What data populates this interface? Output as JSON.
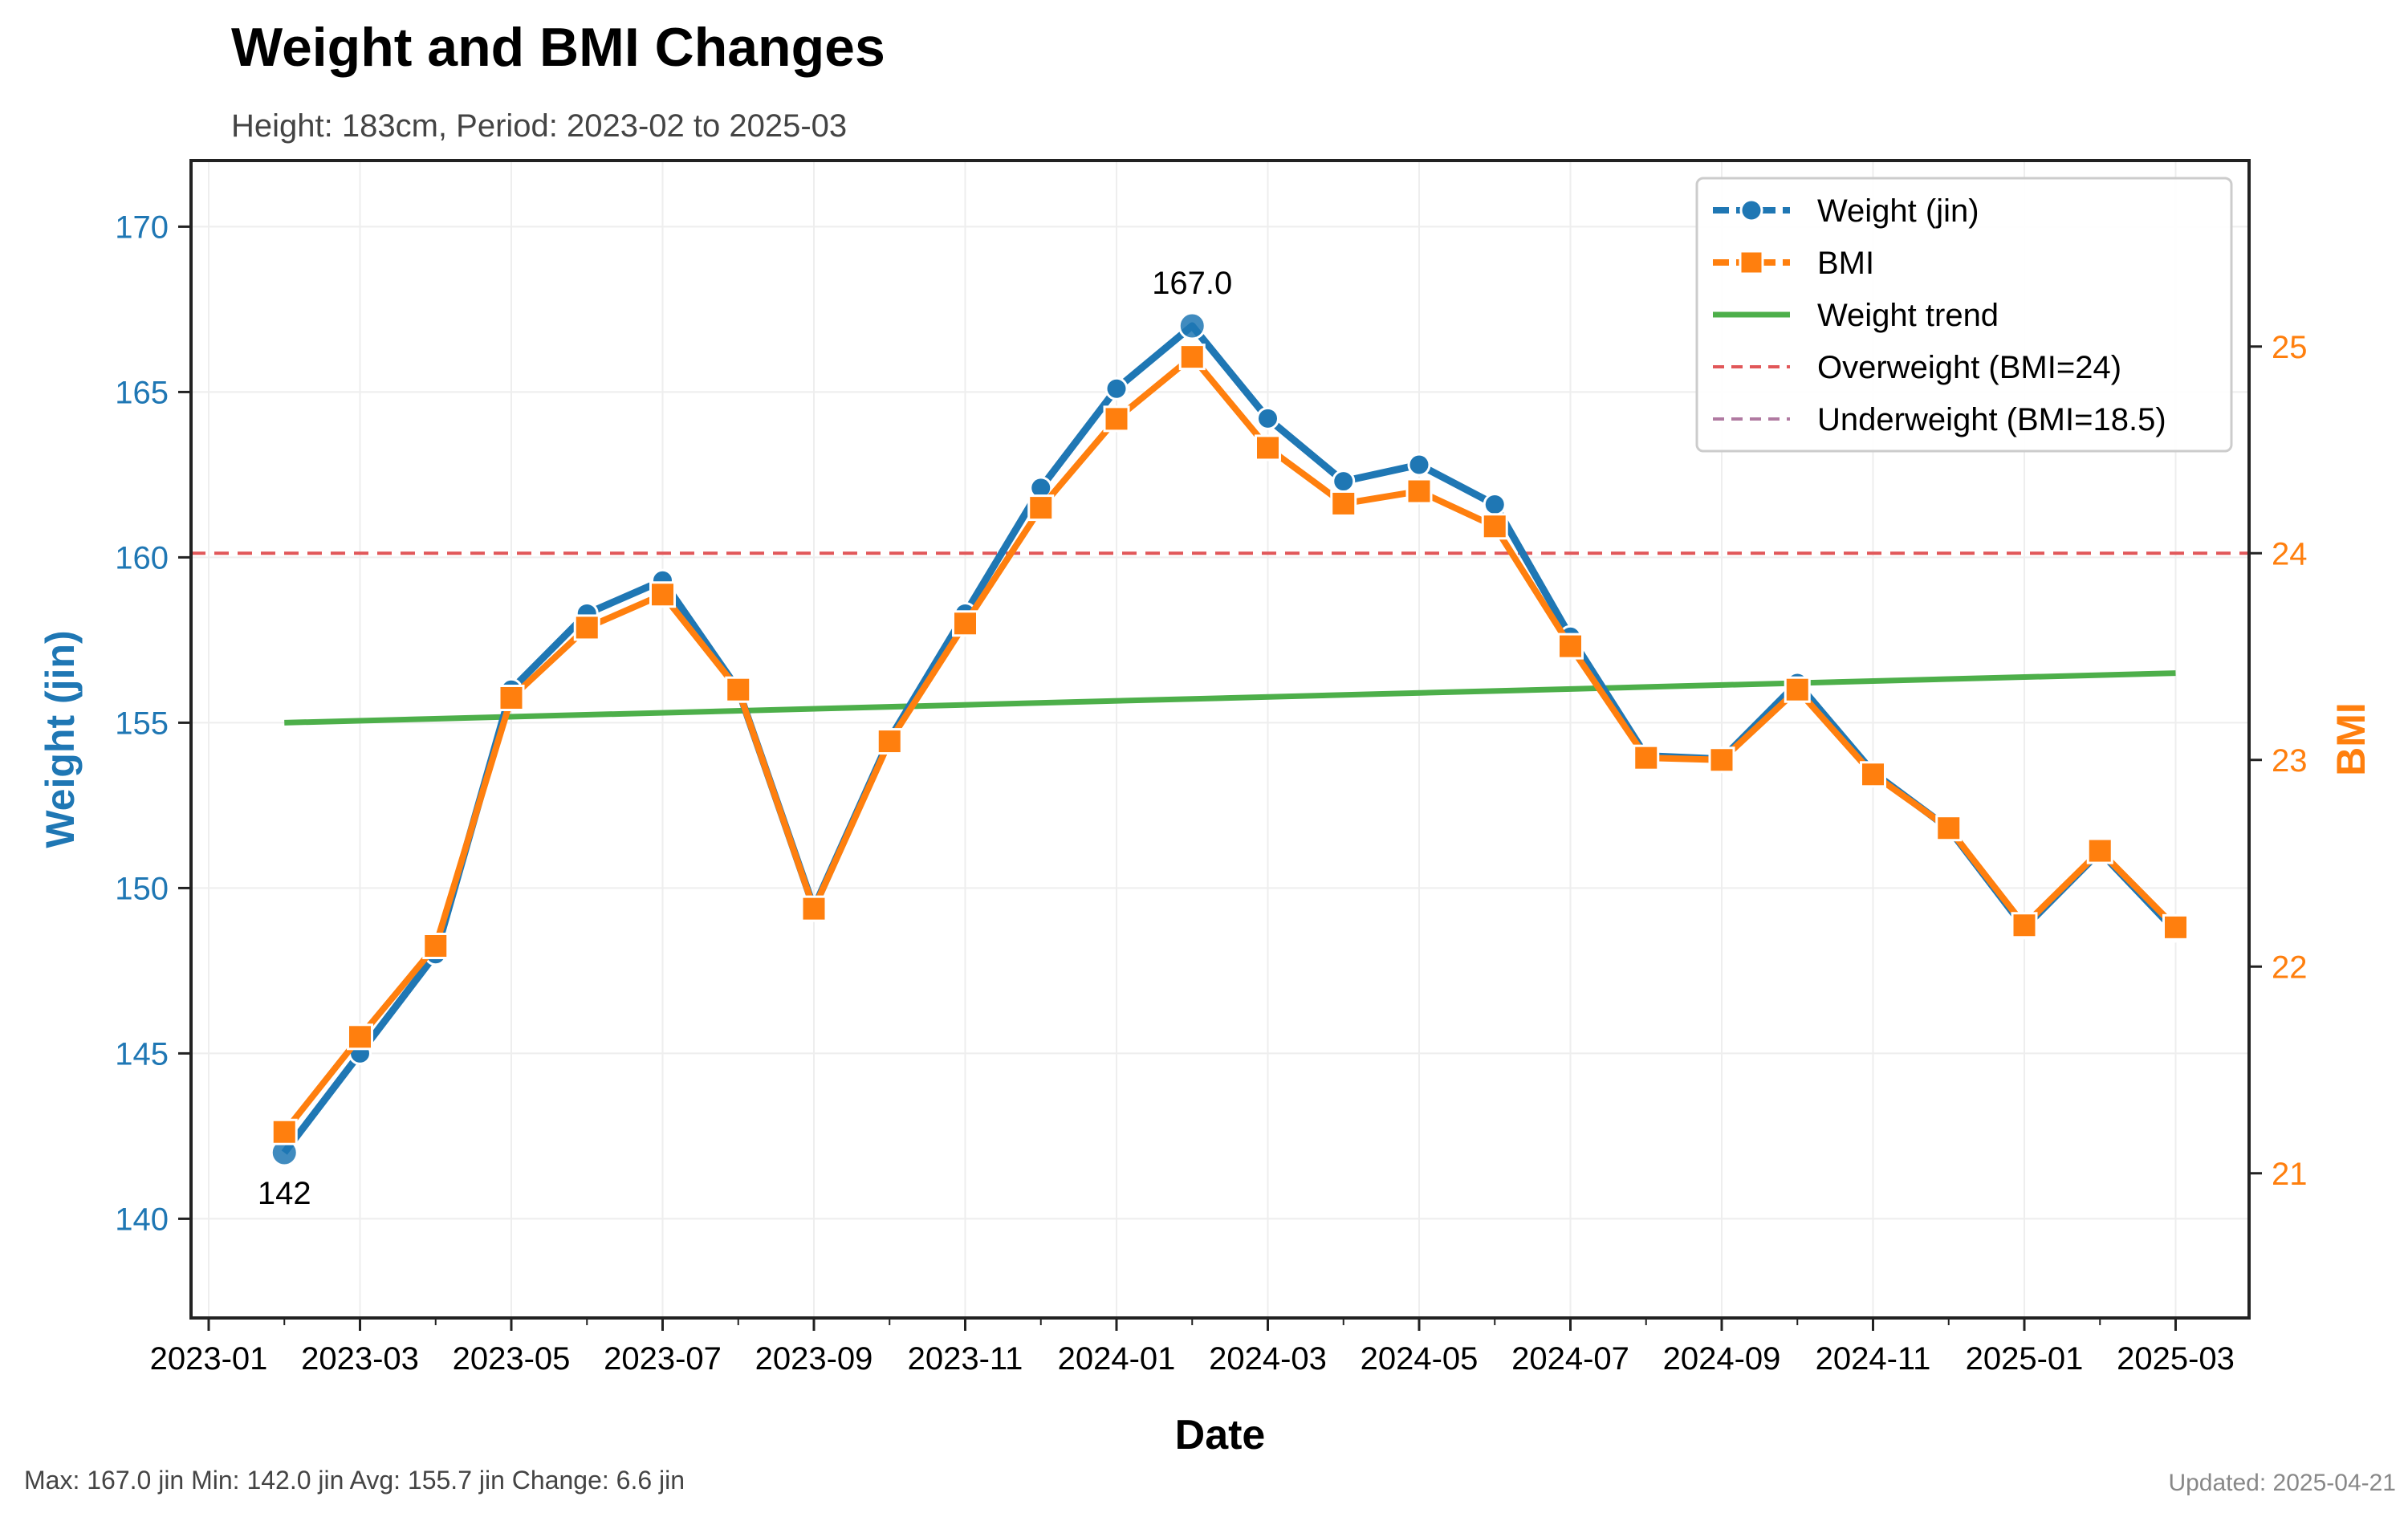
{
  "chart_data": {
    "type": "line",
    "title": "Weight and BMI Changes",
    "subtitle": "Height: 183cm, Period: 2023-02 to 2025-03",
    "xlabel": "Date",
    "ylabel_left": "Weight (jin)",
    "ylabel_right": "BMI",
    "x_tick_labels": [
      "2023-01",
      "2023-03",
      "2023-05",
      "2023-07",
      "2023-09",
      "2023-11",
      "2024-01",
      "2024-03",
      "2024-05",
      "2024-07",
      "2024-09",
      "2024-11",
      "2025-01",
      "2025-03"
    ],
    "x": [
      "2023-02",
      "2023-03",
      "2023-04",
      "2023-05",
      "2023-06",
      "2023-07",
      "2023-08",
      "2023-09",
      "2023-10",
      "2023-11",
      "2023-12",
      "2024-01",
      "2024-02",
      "2024-03",
      "2024-04",
      "2024-05",
      "2024-06",
      "2024-07",
      "2024-08",
      "2024-09",
      "2024-10",
      "2024-11",
      "2024-12",
      "2025-01",
      "2025-02",
      "2025-03"
    ],
    "ylim_left": [
      137,
      172
    ],
    "yticks_left": [
      140,
      145,
      150,
      155,
      160,
      165,
      170
    ],
    "ylim_right": [
      20.3,
      25.9
    ],
    "yticks_right": [
      21,
      22,
      23,
      24,
      25
    ],
    "series": [
      {
        "name": "Weight (jin)",
        "axis": "left",
        "color": "#1f77b4",
        "marker": "circle",
        "values": [
          142.0,
          145.0,
          148.0,
          156.0,
          158.3,
          159.3,
          156.0,
          149.4,
          154.5,
          158.3,
          162.1,
          165.1,
          167.0,
          164.2,
          162.3,
          162.8,
          161.6,
          157.6,
          154.0,
          153.9,
          156.2,
          153.5,
          151.8,
          148.8,
          151.1,
          148.7
        ]
      },
      {
        "name": "BMI",
        "axis": "right",
        "color": "#ff7f0e",
        "marker": "square",
        "values": [
          21.2,
          21.66,
          22.1,
          23.3,
          23.64,
          23.8,
          23.34,
          22.28,
          23.09,
          23.66,
          24.22,
          24.65,
          24.95,
          24.51,
          24.24,
          24.3,
          24.13,
          23.55,
          23.01,
          23.0,
          23.34,
          22.93,
          22.67,
          22.2,
          22.56,
          22.19
        ]
      },
      {
        "name": "Weight trend",
        "axis": "left",
        "color": "#4daf4a",
        "start": {
          "x": "2023-02",
          "y": 155.0
        },
        "end": {
          "x": "2025-03",
          "y": 156.5
        }
      }
    ],
    "reference_lines": [
      {
        "name": "Overweight (BMI=24)",
        "axis": "right",
        "value": 24,
        "color": "#e15759",
        "style": "dashed"
      },
      {
        "name": "Underweight (BMI=18.5)",
        "axis": "right",
        "value": 18.5,
        "color": "#b07aa1",
        "style": "dashed"
      }
    ],
    "annotations": [
      {
        "text": "167.0",
        "x": "2024-02",
        "y": 167.0
      },
      {
        "text": "142",
        "x": "2023-02",
        "y": 142.0
      }
    ],
    "legend_position": "top-right",
    "grid": true
  },
  "footer": {
    "stats": "Max: 167.0 jin  Min: 142.0 jin  Avg: 155.7 jin  Change: 6.6 jin",
    "updated": "Updated: 2025-04-21"
  }
}
